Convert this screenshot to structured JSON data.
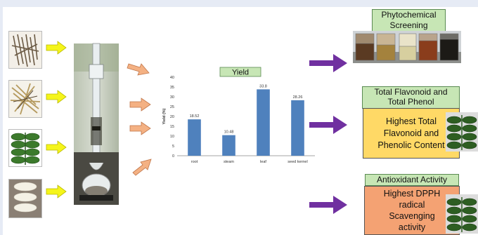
{
  "chart_data": {
    "type": "bar",
    "title": "Yield",
    "ylabel": "Yield (%)",
    "xlabel": "",
    "categories": [
      "root",
      "steam",
      "leaf",
      "seed kernel"
    ],
    "values": [
      18.52,
      10.48,
      33.8,
      28.26
    ],
    "data_labels": [
      "18.52",
      "10.48",
      "33.8",
      "28.26"
    ],
    "ylim": [
      0,
      40
    ],
    "yticks": [
      0,
      5,
      10,
      15,
      20,
      25,
      30,
      35,
      40
    ],
    "bar_color": "#4f81bd",
    "grid": false
  },
  "labels": {
    "phytochemical": "Phytochemical\nScreening",
    "flavonoid": "Total Flavonoid and\nTotal Phenol",
    "flavonoid_result": "Highest Total\nFlavonoid and\nPhenolic Content",
    "antioxidant": "Antioxidant Activity",
    "antioxidant_result": "Highest DPPH\nradical\nScavenging\nactivity"
  },
  "colors": {
    "yellow_arrow": "#f5f51a",
    "orange_arrow": "#f4b183",
    "purple_arrow": "#7030a0",
    "label_green": "#c7e6b5",
    "flavonoid_box": "#ffd966",
    "dpph_box": "#f4a273"
  }
}
